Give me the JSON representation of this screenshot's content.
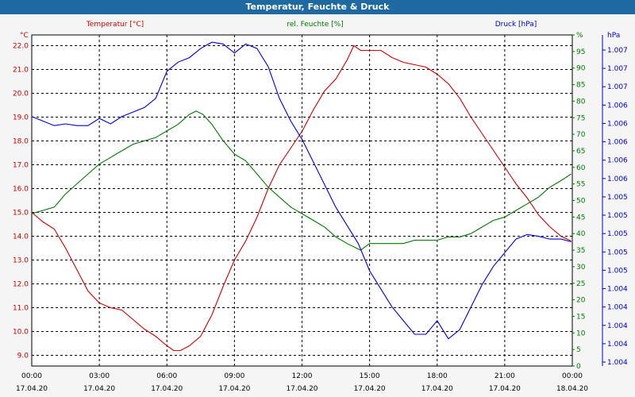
{
  "title": "Temperatur, Feuchte & Druck",
  "colors": {
    "temperature": "#cc0000",
    "humidity": "#007700",
    "pressure": "#0000cc",
    "title_bar": "#1e6aa0",
    "grid": "#000000"
  },
  "chart_data": {
    "type": "line",
    "title": "Temperatur, Feuchte & Druck",
    "grid": true,
    "x": {
      "range_hours": [
        0,
        24
      ],
      "tick_times": [
        "00:00",
        "03:00",
        "06:00",
        "09:00",
        "12:00",
        "15:00",
        "18:00",
        "21:00",
        "00:00"
      ],
      "tick_dates": [
        "17.04.20",
        "17.04.20",
        "17.04.20",
        "17.04.20",
        "17.04.20",
        "17.04.20",
        "17.04.20",
        "17.04.20",
        "18.04.20"
      ]
    },
    "axes": {
      "temperature": {
        "label": "Temperatur [°C]",
        "unit": "°C",
        "ylim": [
          8.55,
          22.45
        ],
        "ticks": [
          "9.0",
          "10.0",
          "11.0",
          "12.0",
          "13.0",
          "14.0",
          "15.0",
          "16.0",
          "17.0",
          "18.0",
          "19.0",
          "20.0",
          "21.0",
          "22.0"
        ]
      },
      "humidity": {
        "label": "rel. Feuchte [%]",
        "unit": "%",
        "ylim": [
          0,
          100
        ],
        "ticks": [
          "0",
          "5",
          "10",
          "15",
          "20",
          "25",
          "30",
          "35",
          "40",
          "45",
          "50",
          "55",
          "60",
          "65",
          "70",
          "75",
          "80",
          "85",
          "90",
          "95",
          "%"
        ]
      },
      "pressure": {
        "label": "Druck [hPa]",
        "unit": "hPa",
        "ylim": [
          1003.55,
          1007.2
        ],
        "ticks": [
          "1.004",
          "1.004",
          "1.004",
          "1.004",
          "1.004",
          "1.005",
          "1.005",
          "1.005",
          "1.005",
          "1.005",
          "1.006",
          "1.006",
          "1.006",
          "1.006",
          "1.006",
          "1.007",
          "1.007",
          "1.007"
        ]
      }
    },
    "series": [
      {
        "name": "Temperatur [°C]",
        "axis": "temperature",
        "x": [
          0,
          0.5,
          1,
          1.5,
          2,
          2.5,
          3,
          3.5,
          4,
          4.5,
          5,
          5.5,
          6,
          6.3,
          6.6,
          7,
          7.5,
          8,
          8.5,
          9,
          9.5,
          10,
          10.5,
          11,
          11.5,
          12,
          12.5,
          13,
          13.5,
          14,
          14.3,
          14.6,
          15,
          15.5,
          16,
          16.5,
          17,
          17.5,
          18,
          18.5,
          19,
          19.5,
          20,
          20.5,
          21,
          21.5,
          22,
          22.5,
          23,
          23.5,
          23.95
        ],
        "values": [
          15.0,
          14.6,
          14.3,
          13.5,
          12.6,
          11.7,
          11.2,
          11.0,
          10.9,
          10.5,
          10.1,
          9.8,
          9.4,
          9.2,
          9.2,
          9.4,
          9.8,
          10.7,
          11.9,
          13.0,
          13.8,
          14.8,
          16.0,
          17.0,
          17.7,
          18.4,
          19.3,
          20.1,
          20.6,
          21.4,
          22.0,
          21.8,
          21.8,
          21.8,
          21.5,
          21.3,
          21.2,
          21.1,
          20.8,
          20.4,
          19.8,
          19.0,
          18.3,
          17.6,
          16.9,
          16.2,
          15.6,
          14.9,
          14.4,
          14.0,
          13.8
        ]
      },
      {
        "name": "rel. Feuchte [%]",
        "axis": "humidity",
        "x": [
          0,
          0.5,
          1,
          1.5,
          2,
          2.5,
          3,
          3.5,
          4,
          4.5,
          5,
          5.5,
          6,
          6.5,
          7,
          7.3,
          7.6,
          8,
          8.5,
          9,
          9.5,
          10,
          10.5,
          11,
          11.5,
          12,
          12.5,
          13,
          13.5,
          14,
          14.3,
          14.6,
          15,
          15.5,
          16,
          16.5,
          17,
          17.5,
          18,
          18.5,
          19,
          19.5,
          20,
          20.5,
          21,
          21.5,
          22,
          22.5,
          23,
          23.5,
          23.95
        ],
        "values": [
          46,
          47,
          48,
          52,
          55,
          58,
          61,
          63,
          65,
          67,
          68,
          69,
          71,
          73,
          76,
          77,
          76,
          73,
          68,
          64,
          62,
          58,
          54,
          51,
          48,
          46,
          44,
          42,
          39,
          37,
          36,
          35,
          37,
          37,
          37,
          37,
          38,
          38,
          38,
          39,
          39,
          40,
          42,
          44,
          45,
          47,
          49,
          51,
          54,
          56,
          58
        ]
      },
      {
        "name": "Druck [hPa]",
        "axis": "pressure",
        "x": [
          0,
          0.5,
          1,
          1.5,
          2,
          2.5,
          3,
          3.5,
          4,
          4.5,
          5,
          5.5,
          6,
          6.5,
          7,
          7.5,
          8,
          8.5,
          9,
          9.5,
          10,
          10.5,
          11,
          11.5,
          12,
          12.5,
          13,
          13.5,
          14,
          14.5,
          15,
          15.5,
          16,
          16.5,
          17,
          17.5,
          18,
          18.5,
          19,
          19.5,
          20,
          20.5,
          21,
          21.5,
          22,
          22.5,
          23,
          23.5,
          23.95
        ],
        "values": [
          1006.3,
          1006.25,
          1006.2,
          1006.22,
          1006.2,
          1006.2,
          1006.28,
          1006.22,
          1006.3,
          1006.35,
          1006.4,
          1006.5,
          1006.8,
          1006.9,
          1006.95,
          1007.05,
          1007.12,
          1007.1,
          1007.0,
          1007.1,
          1007.05,
          1006.85,
          1006.5,
          1006.25,
          1006.05,
          1005.8,
          1005.55,
          1005.3,
          1005.1,
          1004.9,
          1004.6,
          1004.4,
          1004.2,
          1004.05,
          1003.9,
          1003.9,
          1004.05,
          1003.85,
          1003.95,
          1004.2,
          1004.45,
          1004.65,
          1004.8,
          1004.95,
          1005.0,
          1004.98,
          1004.95,
          1004.95,
          1004.92
        ]
      }
    ]
  }
}
